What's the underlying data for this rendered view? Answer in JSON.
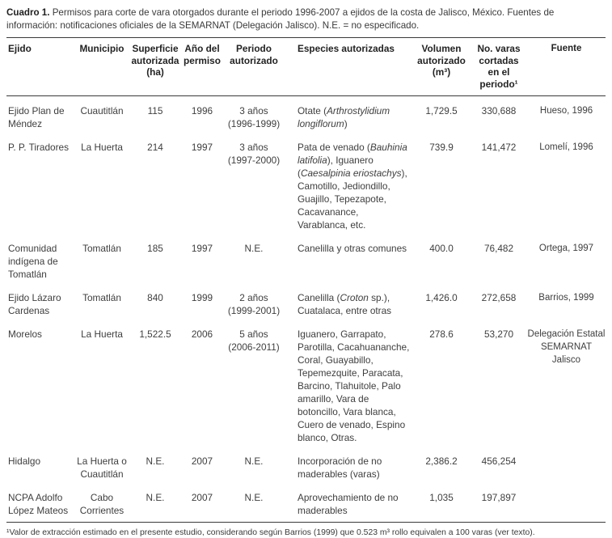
{
  "caption": {
    "label": "Cuadro 1.",
    "text": "Permisos para corte de vara otorgados durante el periodo 1996-2007 a ejidos de la costa de Jalisco, México. Fuentes de información: notificaciones oficiales de la SEMARNAT (Delegación Jalisco). N.E. = no especificado."
  },
  "table": {
    "headers": {
      "ejido": "Ejido",
      "municipio": "Municipio",
      "superficie": "Superficie autorizada (ha)",
      "anio": "Año del permiso",
      "periodo": "Periodo autorizado",
      "especies": "Especies autorizadas",
      "volumen": "Volumen autorizado (m³)",
      "varas": "No. varas cortadas en el periodo¹",
      "fuente": "Fuente"
    },
    "rows": [
      {
        "ejido": "Ejido Plan de Méndez",
        "municipio": "Cuautitlán",
        "superficie": "115",
        "anio": "1996",
        "periodo": "3 años (1996-1999)",
        "especies": [
          {
            "t": "Otate ("
          },
          {
            "t": "Arthrostylidium longiflorum",
            "i": true
          },
          {
            "t": ")"
          }
        ],
        "volumen": "1,729.5",
        "varas": "330,688",
        "fuente": "Hueso, 1996"
      },
      {
        "ejido": "P. P. Tiradores",
        "municipio": "La Huerta",
        "superficie": "214",
        "anio": "1997",
        "periodo": "3 años (1997-2000)",
        "especies": [
          {
            "t": "Pata de venado ("
          },
          {
            "t": "Bauhinia latifolia",
            "i": true
          },
          {
            "t": "), Iguanero ("
          },
          {
            "t": "Caesalpinia eriostachys",
            "i": true
          },
          {
            "t": "), Camotillo, Jediondillo, Guajillo, Tepezapote, Cacavanance, Varablanca, etc."
          }
        ],
        "volumen": "739.9",
        "varas": "141,472",
        "fuente": "Lomelí, 1996"
      },
      {
        "ejido": "Comunidad indígena de Tomatlán",
        "municipio": "Tomatlán",
        "superficie": "185",
        "anio": "1997",
        "periodo": "N.E.",
        "especies": [
          {
            "t": "Canelilla y otras comunes"
          }
        ],
        "volumen": "400.0",
        "varas": "76,482",
        "fuente": "Ortega, 1997"
      },
      {
        "ejido": "Ejido Lázaro Cardenas",
        "municipio": "Tomatlán",
        "superficie": "840",
        "anio": "1999",
        "periodo": "2 años (1999-2001)",
        "especies": [
          {
            "t": "Canelilla ("
          },
          {
            "t": "Croton",
            "i": true
          },
          {
            "t": " sp.), Cuatalaca, entre otras"
          }
        ],
        "volumen": "1,426.0",
        "varas": "272,658",
        "fuente": "Barrios, 1999"
      },
      {
        "ejido": "Morelos",
        "municipio": "La Huerta",
        "superficie": "1,522.5",
        "anio": "2006",
        "periodo": "5 años (2006-2011)",
        "especies": [
          {
            "t": "Iguanero, Garrapato, Parotilla, Cacahuananche, Coral, Guayabillo, Tepemezquite, Paracata, Barcino, Tlahuitole, Palo amarillo, Vara de botoncillo, Vara blanca, Cuero de venado, Espino blanco, Otras."
          }
        ],
        "volumen": "278.6",
        "varas": "53,270",
        "fuente": "Delegación Estatal SEMARNAT Jalisco"
      },
      {
        "ejido": "Hidalgo",
        "municipio": "La Huerta o Cuautitlán",
        "superficie": "N.E.",
        "anio": "2007",
        "periodo": "N.E.",
        "especies": [
          {
            "t": "Incorporación de no maderables (varas)"
          }
        ],
        "volumen": "2,386.2",
        "varas": "456,254",
        "fuente": ""
      },
      {
        "ejido": "NCPA Adolfo López Mateos",
        "municipio": "Cabo Corrientes",
        "superficie": "N.E.",
        "anio": "2007",
        "periodo": "N.E.",
        "especies": [
          {
            "t": "Aprovechamiento de no maderables"
          }
        ],
        "volumen": "1,035",
        "varas": "197,897",
        "fuente": ""
      }
    ]
  },
  "footnote": "¹Valor de extracción estimado en el presente estudio, considerando según Barrios (1999) que 0.523 m³ rollo equivalen a 100 varas (ver texto)."
}
